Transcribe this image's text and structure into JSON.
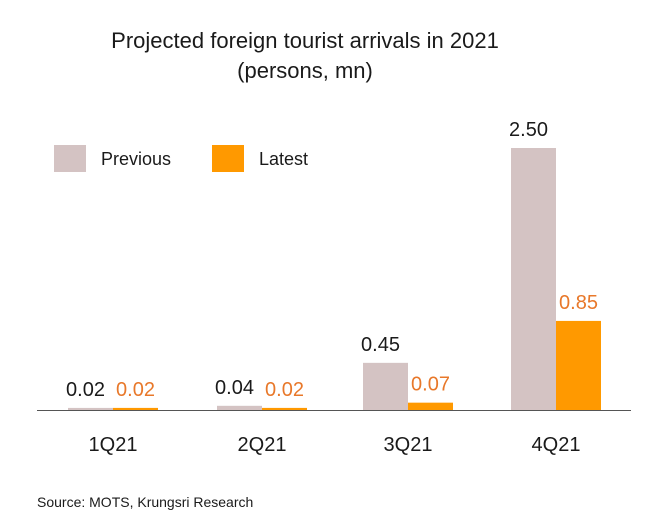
{
  "chart_data": {
    "type": "bar",
    "title": "Projected foreign tourist arrivals in 2021",
    "subtitle": "(persons, mn)",
    "categories": [
      "1Q21",
      "2Q21",
      "3Q21",
      "4Q21"
    ],
    "series": [
      {
        "name": "Previous",
        "values": [
          0.02,
          0.04,
          0.45,
          2.5
        ],
        "labels": [
          "0.02",
          "0.04",
          "0.45",
          "2.50"
        ],
        "color": "#d4c3c3",
        "label_color": "#1a1a1a"
      },
      {
        "name": "Latest",
        "values": [
          0.02,
          0.02,
          0.07,
          0.85
        ],
        "labels": [
          "0.02",
          "0.02",
          "0.07",
          "0.85"
        ],
        "color": "#ff9900",
        "label_color": "#e8782a"
      }
    ],
    "ylim": [
      0,
      2.5
    ],
    "grid": false,
    "legend_position": "top-left",
    "source": "Source: MOTS, Krungsri Research"
  }
}
